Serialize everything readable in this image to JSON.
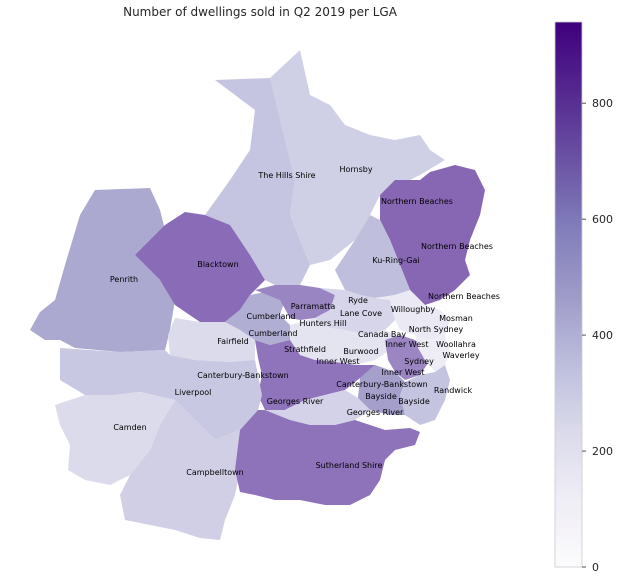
{
  "title": "Number of dwellings sold in Q2 2019 per LGA",
  "colorbar": {
    "min": 0,
    "max": 940,
    "ticks": [
      0,
      200,
      400,
      600,
      800
    ],
    "colormap": [
      "#fcfbfd",
      "#efedf5",
      "#dadaeb",
      "#bcbddc",
      "#9e9ac8",
      "#807dba",
      "#6a51a3",
      "#54278f",
      "#3f007d"
    ]
  },
  "labels": [
    {
      "text": "The Hills Shire"
    },
    {
      "text": "Hornsby"
    },
    {
      "text": "Northern Beaches"
    },
    {
      "text": "Northern Beaches"
    },
    {
      "text": "Blacktown"
    },
    {
      "text": "Ku-Ring-Gai"
    },
    {
      "text": "Penrith"
    },
    {
      "text": "Northern Beaches"
    },
    {
      "text": "Ryde"
    },
    {
      "text": "Parramatta"
    },
    {
      "text": "Willoughby"
    },
    {
      "text": "Lane Cove"
    },
    {
      "text": "Cumberland"
    },
    {
      "text": "Mosman"
    },
    {
      "text": "Hunters Hill"
    },
    {
      "text": "North Sydney"
    },
    {
      "text": "Cumberland"
    },
    {
      "text": "Canada Bay"
    },
    {
      "text": "Fairfield"
    },
    {
      "text": "Woollahra"
    },
    {
      "text": "Inner West"
    },
    {
      "text": "Strathfield"
    },
    {
      "text": "Burwood"
    },
    {
      "text": "Waverley"
    },
    {
      "text": "Inner West"
    },
    {
      "text": "Sydney"
    },
    {
      "text": "Inner West"
    },
    {
      "text": "Canterbury-Bankstown"
    },
    {
      "text": "Canterbury-Bankstown"
    },
    {
      "text": "Liverpool"
    },
    {
      "text": "Randwick"
    },
    {
      "text": "Bayside"
    },
    {
      "text": "Georges River"
    },
    {
      "text": "Bayside"
    },
    {
      "text": "Georges River"
    },
    {
      "text": "Camden"
    },
    {
      "text": "Sutherland Shire"
    },
    {
      "text": "Campbelltown"
    }
  ]
}
